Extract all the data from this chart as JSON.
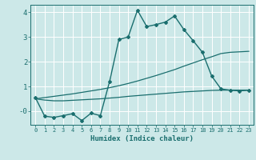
{
  "xlabel": "Humidex (Indice chaleur)",
  "background_color": "#cce8e8",
  "grid_color": "#ffffff",
  "line_color": "#1a6e6e",
  "xlim": [
    -0.5,
    23.5
  ],
  "ylim": [
    -0.55,
    4.3
  ],
  "xticks": [
    0,
    1,
    2,
    3,
    4,
    5,
    6,
    7,
    8,
    9,
    10,
    11,
    12,
    13,
    14,
    15,
    16,
    17,
    18,
    19,
    20,
    21,
    22,
    23
  ],
  "yticks": [
    0,
    1,
    2,
    3,
    4
  ],
  "ytick_labels": [
    "-0",
    "1",
    "2",
    "3",
    "4"
  ],
  "series": [
    {
      "x": [
        0,
        1,
        2,
        3,
        4,
        5,
        6,
        7,
        8,
        9,
        10,
        11,
        12,
        13,
        14,
        15,
        16,
        17,
        18,
        19,
        20,
        21,
        22,
        23
      ],
      "y": [
        0.55,
        -0.2,
        -0.25,
        -0.18,
        -0.1,
        -0.38,
        -0.08,
        -0.18,
        1.2,
        2.9,
        3.0,
        4.08,
        3.42,
        3.5,
        3.6,
        3.85,
        3.3,
        2.85,
        2.38,
        1.42,
        0.9,
        0.85,
        0.82,
        0.85
      ],
      "marker": "D",
      "marker_size": 2.0,
      "linewidth": 1.0,
      "zorder": 3
    },
    {
      "x": [
        0,
        1,
        2,
        3,
        4,
        5,
        6,
        7,
        8,
        9,
        10,
        11,
        12,
        13,
        14,
        15,
        16,
        17,
        18,
        19,
        20,
        21,
        22,
        23
      ],
      "y": [
        0.5,
        0.45,
        0.42,
        0.42,
        0.44,
        0.46,
        0.48,
        0.5,
        0.53,
        0.56,
        0.6,
        0.63,
        0.66,
        0.69,
        0.72,
        0.75,
        0.78,
        0.8,
        0.82,
        0.84,
        0.85,
        0.85,
        0.85,
        0.85
      ],
      "marker": null,
      "linewidth": 0.9,
      "zorder": 2
    },
    {
      "x": [
        0,
        1,
        2,
        3,
        4,
        5,
        6,
        7,
        8,
        9,
        10,
        11,
        12,
        13,
        14,
        15,
        16,
        17,
        18,
        19,
        20,
        21,
        22,
        23
      ],
      "y": [
        0.5,
        0.55,
        0.6,
        0.65,
        0.7,
        0.76,
        0.82,
        0.88,
        0.95,
        1.03,
        1.12,
        1.22,
        1.33,
        1.44,
        1.56,
        1.68,
        1.82,
        1.95,
        2.08,
        2.2,
        2.33,
        2.38,
        2.4,
        2.42
      ],
      "marker": null,
      "linewidth": 0.9,
      "zorder": 2
    }
  ]
}
